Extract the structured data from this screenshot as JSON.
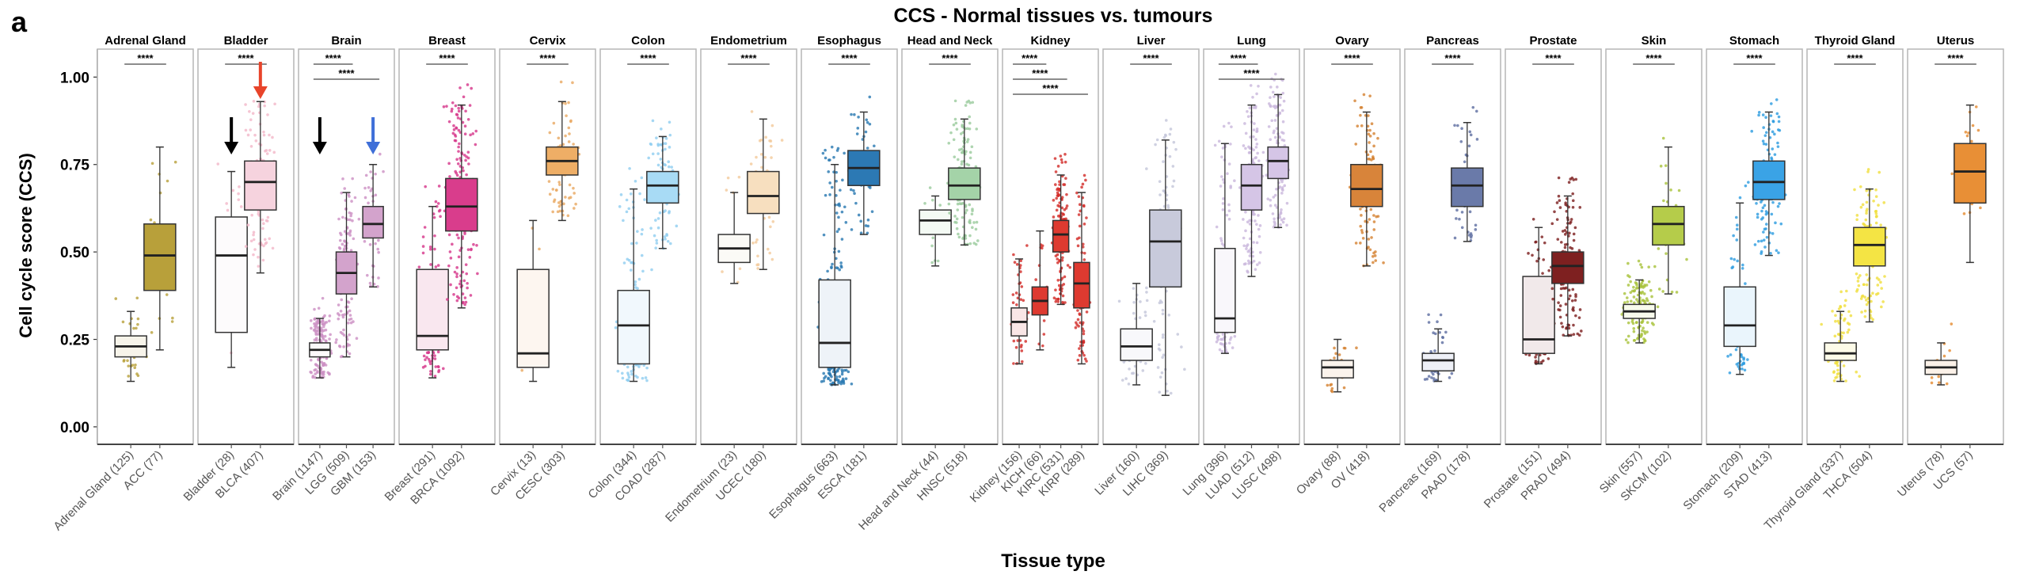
{
  "panel_letter": "a",
  "chart_data": {
    "type": "box",
    "title": "CCS - Normal tissues vs. tumours",
    "xlabel": "Tissue type",
    "ylabel": "Cell cycle score (CCS)",
    "ylim": [
      -0.05,
      1.08
    ],
    "yticks": [
      0.0,
      0.25,
      0.5,
      0.75,
      1.0
    ],
    "ytick_labels": [
      "0.00",
      "0.25",
      "0.50",
      "0.75",
      "1.00"
    ],
    "grid": false,
    "significance_label": "****",
    "panels": [
      {
        "name": "Adrenal Gland",
        "groups": [
          {
            "label": "Adrenal Gland (125)",
            "n": 125,
            "min": 0.13,
            "q1": 0.2,
            "median": 0.23,
            "q3": 0.26,
            "max": 0.33,
            "color": "#f7f4ea",
            "point_color": "#b8a03a"
          },
          {
            "label": "ACC (77)",
            "n": 77,
            "min": 0.22,
            "q1": 0.39,
            "median": 0.49,
            "q3": 0.58,
            "max": 0.8,
            "color": "#b8a03a",
            "point_color": "#b8a03a"
          }
        ],
        "comparisons": [
          [
            0,
            1
          ]
        ]
      },
      {
        "name": "Bladder",
        "groups": [
          {
            "label": "Bladder (28)",
            "n": 28,
            "min": 0.17,
            "q1": 0.27,
            "median": 0.49,
            "q3": 0.6,
            "max": 0.73,
            "color": "#fdfbfc",
            "point_color": "#f2b6c8"
          },
          {
            "label": "BLCA (407)",
            "n": 407,
            "min": 0.44,
            "q1": 0.62,
            "median": 0.7,
            "q3": 0.76,
            "max": 0.93,
            "color": "#f6d3de",
            "point_color": "#f2b6c8"
          }
        ],
        "comparisons": [
          [
            0,
            1
          ]
        ],
        "arrows": [
          {
            "group": 0,
            "color": "#000000"
          },
          {
            "group": 1,
            "color": "#e8442a"
          }
        ]
      },
      {
        "name": "Brain",
        "groups": [
          {
            "label": "Brain (1147)",
            "n": 1147,
            "min": 0.14,
            "q1": 0.2,
            "median": 0.22,
            "q3": 0.24,
            "max": 0.31,
            "color": "#fcf9fb",
            "point_color": "#cc8fc3"
          },
          {
            "label": "LGG (509)",
            "n": 509,
            "min": 0.2,
            "q1": 0.38,
            "median": 0.44,
            "q3": 0.5,
            "max": 0.67,
            "color": "#d3a3cc",
            "point_color": "#cc8fc3"
          },
          {
            "label": "GBM (153)",
            "n": 153,
            "min": 0.4,
            "q1": 0.54,
            "median": 0.58,
            "q3": 0.63,
            "max": 0.75,
            "color": "#d3a3cc",
            "point_color": "#cc8fc3"
          }
        ],
        "comparisons": [
          [
            0,
            1
          ],
          [
            0,
            2
          ]
        ],
        "arrows": [
          {
            "group": 0,
            "color": "#000000"
          },
          {
            "group": 2,
            "color": "#3f6fd8"
          }
        ]
      },
      {
        "name": "Breast",
        "groups": [
          {
            "label": "Breast (291)",
            "n": 291,
            "min": 0.14,
            "q1": 0.22,
            "median": 0.26,
            "q3": 0.45,
            "max": 0.63,
            "color": "#f9e7ef",
            "point_color": "#d6358a"
          },
          {
            "label": "BRCA (1092)",
            "n": 1092,
            "min": 0.34,
            "q1": 0.56,
            "median": 0.63,
            "q3": 0.71,
            "max": 0.92,
            "color": "#d93d8c",
            "point_color": "#d6358a"
          }
        ],
        "comparisons": [
          [
            0,
            1
          ]
        ]
      },
      {
        "name": "Cervix",
        "groups": [
          {
            "label": "Cervix (13)",
            "n": 13,
            "min": 0.13,
            "q1": 0.17,
            "median": 0.21,
            "q3": 0.45,
            "max": 0.59,
            "color": "#fdf6f0",
            "point_color": "#e8a860"
          },
          {
            "label": "CESC (303)",
            "n": 303,
            "min": 0.59,
            "q1": 0.72,
            "median": 0.76,
            "q3": 0.8,
            "max": 0.93,
            "color": "#eeae66",
            "point_color": "#e8a860"
          }
        ],
        "comparisons": [
          [
            0,
            1
          ]
        ]
      },
      {
        "name": "Colon",
        "groups": [
          {
            "label": "Colon (344)",
            "n": 344,
            "min": 0.13,
            "q1": 0.18,
            "median": 0.29,
            "q3": 0.39,
            "max": 0.68,
            "color": "#f1f8fd",
            "point_color": "#8ecdf0"
          },
          {
            "label": "COAD (287)",
            "n": 287,
            "min": 0.51,
            "q1": 0.64,
            "median": 0.69,
            "q3": 0.73,
            "max": 0.83,
            "color": "#a8dbf5",
            "point_color": "#8ecdf0"
          }
        ],
        "comparisons": [
          [
            0,
            1
          ]
        ]
      },
      {
        "name": "Endometrium",
        "groups": [
          {
            "label": "Endometrium (23)",
            "n": 23,
            "min": 0.41,
            "q1": 0.47,
            "median": 0.51,
            "q3": 0.55,
            "max": 0.67,
            "color": "#fbfaf6",
            "point_color": "#f2c99a"
          },
          {
            "label": "UCEC (180)",
            "n": 180,
            "min": 0.45,
            "q1": 0.61,
            "median": 0.66,
            "q3": 0.73,
            "max": 0.88,
            "color": "#f7dfbf",
            "point_color": "#f2c99a"
          }
        ],
        "comparisons": [
          [
            0,
            1
          ]
        ]
      },
      {
        "name": "Esophagus",
        "groups": [
          {
            "label": "Esophagus (663)",
            "n": 663,
            "min": 0.12,
            "q1": 0.17,
            "median": 0.24,
            "q3": 0.42,
            "max": 0.75,
            "color": "#eef3f8",
            "point_color": "#2677b0"
          },
          {
            "label": "ESCA (181)",
            "n": 181,
            "min": 0.55,
            "q1": 0.69,
            "median": 0.74,
            "q3": 0.79,
            "max": 0.9,
            "color": "#2c79b4",
            "point_color": "#2677b0"
          }
        ],
        "comparisons": [
          [
            0,
            1
          ]
        ]
      },
      {
        "name": "Head and Neck",
        "groups": [
          {
            "label": "Head and Neck (44)",
            "n": 44,
            "min": 0.46,
            "q1": 0.55,
            "median": 0.59,
            "q3": 0.62,
            "max": 0.66,
            "color": "#f4faf4",
            "point_color": "#9acb9c"
          },
          {
            "label": "HNSC (518)",
            "n": 518,
            "min": 0.52,
            "q1": 0.65,
            "median": 0.69,
            "q3": 0.74,
            "max": 0.88,
            "color": "#a4d3a8",
            "point_color": "#9acb9c"
          }
        ],
        "comparisons": [
          [
            0,
            1
          ]
        ]
      },
      {
        "name": "Kidney",
        "groups": [
          {
            "label": "Kidney (156)",
            "n": 156,
            "min": 0.18,
            "q1": 0.26,
            "median": 0.3,
            "q3": 0.34,
            "max": 0.48,
            "color": "#f9e6e6",
            "point_color": "#d22b27"
          },
          {
            "label": "KICH (66)",
            "n": 66,
            "min": 0.22,
            "q1": 0.32,
            "median": 0.36,
            "q3": 0.4,
            "max": 0.56,
            "color": "#de3a30",
            "point_color": "#d22b27"
          },
          {
            "label": "KIRC (531)",
            "n": 531,
            "min": 0.35,
            "q1": 0.5,
            "median": 0.55,
            "q3": 0.59,
            "max": 0.72,
            "color": "#de3a30",
            "point_color": "#d22b27"
          },
          {
            "label": "KIRP (289)",
            "n": 289,
            "min": 0.18,
            "q1": 0.34,
            "median": 0.41,
            "q3": 0.47,
            "max": 0.67,
            "color": "#de3a30",
            "point_color": "#d22b27"
          }
        ],
        "comparisons": [
          [
            0,
            1
          ],
          [
            0,
            2
          ],
          [
            0,
            3
          ]
        ]
      },
      {
        "name": "Liver",
        "groups": [
          {
            "label": "Liver (160)",
            "n": 160,
            "min": 0.12,
            "q1": 0.19,
            "median": 0.23,
            "q3": 0.28,
            "max": 0.41,
            "color": "#f8f8fb",
            "point_color": "#c3c5d9"
          },
          {
            "label": "LIHC (369)",
            "n": 369,
            "min": 0.09,
            "q1": 0.4,
            "median": 0.53,
            "q3": 0.62,
            "max": 0.82,
            "color": "#c8cadb",
            "point_color": "#c3c5d9"
          }
        ],
        "comparisons": [
          [
            0,
            1
          ]
        ]
      },
      {
        "name": "Lung",
        "groups": [
          {
            "label": "Lung (396)",
            "n": 396,
            "min": 0.21,
            "q1": 0.27,
            "median": 0.31,
            "q3": 0.51,
            "max": 0.81,
            "color": "#f9f7fb",
            "point_color": "#c9b6dc"
          },
          {
            "label": "LUAD (512)",
            "n": 512,
            "min": 0.43,
            "q1": 0.62,
            "median": 0.69,
            "q3": 0.75,
            "max": 0.92,
            "color": "#d5c5e6",
            "point_color": "#c9b6dc"
          },
          {
            "label": "LUSC (498)",
            "n": 498,
            "min": 0.57,
            "q1": 0.71,
            "median": 0.76,
            "q3": 0.8,
            "max": 0.95,
            "color": "#d5c5e6",
            "point_color": "#c9b6dc"
          }
        ],
        "comparisons": [
          [
            0,
            1
          ],
          [
            0,
            2
          ]
        ]
      },
      {
        "name": "Ovary",
        "groups": [
          {
            "label": "Ovary (88)",
            "n": 88,
            "min": 0.1,
            "q1": 0.14,
            "median": 0.17,
            "q3": 0.19,
            "max": 0.25,
            "color": "#fbf3ec",
            "point_color": "#d4812f"
          },
          {
            "label": "OV (418)",
            "n": 418,
            "min": 0.46,
            "q1": 0.63,
            "median": 0.68,
            "q3": 0.75,
            "max": 0.9,
            "color": "#d8843a",
            "point_color": "#d4812f"
          }
        ],
        "comparisons": [
          [
            0,
            1
          ]
        ]
      },
      {
        "name": "Pancreas",
        "groups": [
          {
            "label": "Pancreas (169)",
            "n": 169,
            "min": 0.13,
            "q1": 0.16,
            "median": 0.19,
            "q3": 0.21,
            "max": 0.28,
            "color": "#eef0f7",
            "point_color": "#5c6da0"
          },
          {
            "label": "PAAD (178)",
            "n": 178,
            "min": 0.53,
            "q1": 0.63,
            "median": 0.69,
            "q3": 0.74,
            "max": 0.87,
            "color": "#6a7aa9",
            "point_color": "#5c6da0"
          }
        ],
        "comparisons": [
          [
            0,
            1
          ]
        ]
      },
      {
        "name": "Prostate",
        "groups": [
          {
            "label": "Prostate (151)",
            "n": 151,
            "min": 0.18,
            "q1": 0.21,
            "median": 0.25,
            "q3": 0.43,
            "max": 0.57,
            "color": "#f1e9ea",
            "point_color": "#7b1c1c"
          },
          {
            "label": "PRAD (494)",
            "n": 494,
            "min": 0.26,
            "q1": 0.41,
            "median": 0.46,
            "q3": 0.5,
            "max": 0.66,
            "color": "#7e2020",
            "point_color": "#7b1c1c"
          }
        ],
        "comparisons": [
          [
            0,
            1
          ]
        ]
      },
      {
        "name": "Skin",
        "groups": [
          {
            "label": "Skin (557)",
            "n": 557,
            "min": 0.24,
            "q1": 0.31,
            "median": 0.33,
            "q3": 0.35,
            "max": 0.42,
            "color": "#f8fbec",
            "point_color": "#a8c23a"
          },
          {
            "label": "SKCM (102)",
            "n": 102,
            "min": 0.38,
            "q1": 0.52,
            "median": 0.58,
            "q3": 0.63,
            "max": 0.8,
            "color": "#b5cc4a",
            "point_color": "#a8c23a"
          }
        ],
        "comparisons": [
          [
            0,
            1
          ]
        ]
      },
      {
        "name": "Stomach",
        "groups": [
          {
            "label": "Stomach (209)",
            "n": 209,
            "min": 0.15,
            "q1": 0.23,
            "median": 0.29,
            "q3": 0.4,
            "max": 0.64,
            "color": "#eaf5fc",
            "point_color": "#2b9be0"
          },
          {
            "label": "STAD (413)",
            "n": 413,
            "min": 0.49,
            "q1": 0.65,
            "median": 0.7,
            "q3": 0.76,
            "max": 0.9,
            "color": "#3aa3e6",
            "point_color": "#2b9be0"
          }
        ],
        "comparisons": [
          [
            0,
            1
          ]
        ]
      },
      {
        "name": "Thyroid Gland",
        "groups": [
          {
            "label": "Thyroid Gland (337)",
            "n": 337,
            "min": 0.13,
            "q1": 0.19,
            "median": 0.21,
            "q3": 0.24,
            "max": 0.33,
            "color": "#fdfbe8",
            "point_color": "#f0de3c"
          },
          {
            "label": "THCA (504)",
            "n": 504,
            "min": 0.3,
            "q1": 0.46,
            "median": 0.52,
            "q3": 0.57,
            "max": 0.68,
            "color": "#f4e444",
            "point_color": "#f0de3c"
          }
        ],
        "comparisons": [
          [
            0,
            1
          ]
        ]
      },
      {
        "name": "Uterus",
        "groups": [
          {
            "label": "Uterus (78)",
            "n": 78,
            "min": 0.12,
            "q1": 0.15,
            "median": 0.17,
            "q3": 0.19,
            "max": 0.24,
            "color": "#fbf1e8",
            "point_color": "#e58a2e"
          },
          {
            "label": "UCS (57)",
            "n": 57,
            "min": 0.47,
            "q1": 0.64,
            "median": 0.73,
            "q3": 0.81,
            "max": 0.92,
            "color": "#e88f36",
            "point_color": "#e58a2e"
          }
        ],
        "comparisons": [
          [
            0,
            1
          ]
        ]
      }
    ]
  }
}
